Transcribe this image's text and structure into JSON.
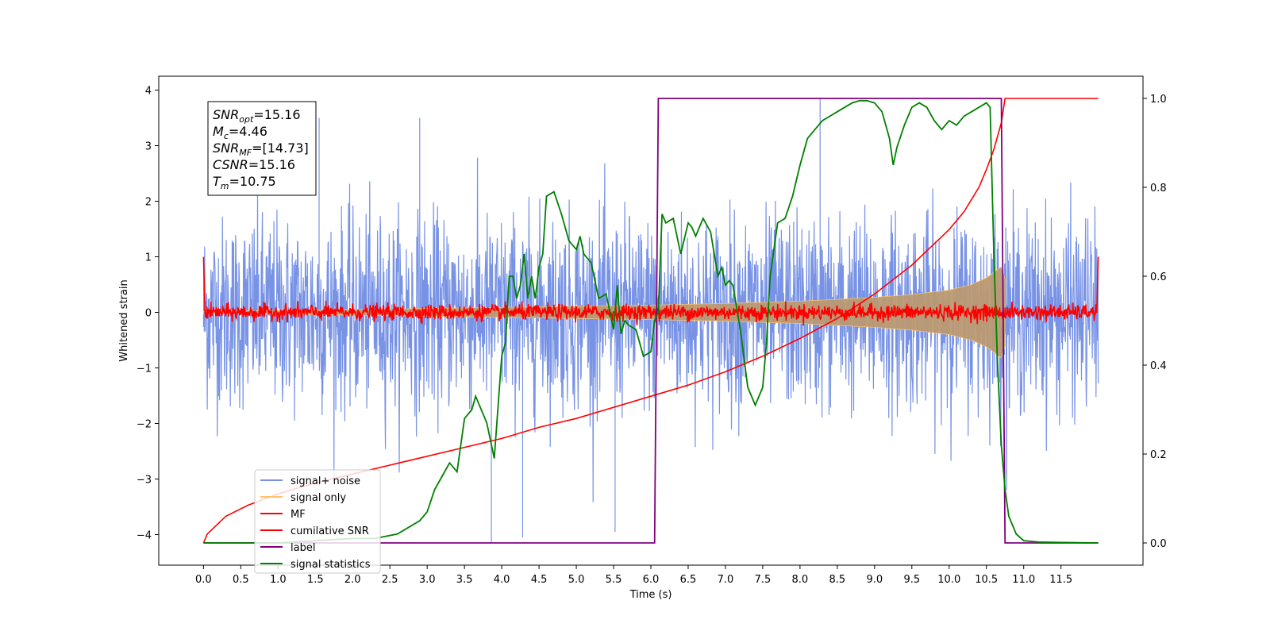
{
  "chart_data": {
    "type": "line",
    "title": "",
    "xlabel": "Time (s)",
    "ylabel": "Whitened strain",
    "xlim": [
      -0.6,
      12.6
    ],
    "ylim": [
      -4.55,
      4.25
    ],
    "y2lim": [
      -0.05,
      1.05
    ],
    "x_ticks": [
      0,
      0.5,
      1,
      1.5,
      2,
      2.5,
      3,
      3.5,
      4,
      4.5,
      5,
      5.5,
      6,
      6.5,
      7,
      7.5,
      8,
      8.5,
      9,
      9.5,
      10,
      10.5,
      11,
      11.5
    ],
    "x_tick_labels": [
      "0.0",
      "0.5",
      "1.0",
      "1.5",
      "2.0",
      "2.5",
      "3.0",
      "3.5",
      "4.0",
      "4.5",
      "5.0",
      "5.5",
      "6.0",
      "6.5",
      "7.0",
      "7.5",
      "8.0",
      "8.5",
      "9.0",
      "9.5",
      "10.0",
      "10.5",
      "11.0",
      "11.5"
    ],
    "y_ticks": [
      -4,
      -3,
      -2,
      -1,
      0,
      1,
      2,
      3,
      4
    ],
    "y_tick_labels": [
      "−4",
      "−3",
      "−2",
      "−1",
      "0",
      "1",
      "2",
      "3",
      "4"
    ],
    "y2_ticks": [
      0,
      0.2,
      0.4,
      0.6,
      0.8,
      1.0
    ],
    "y2_tick_labels": [
      "0.0",
      "0.2",
      "0.4",
      "0.6",
      "0.8",
      "1.0"
    ],
    "grid": false,
    "legend_position": "lower-left",
    "annotation": {
      "lines": [
        {
          "base": "SNR",
          "sub": "opt",
          "value": "=15.16"
        },
        {
          "base": "M",
          "sub": "c",
          "value": "=4.46"
        },
        {
          "base": "SNR",
          "sub": "MF",
          "value": "=[14.73]"
        },
        {
          "base": "CSNR",
          "sub": "",
          "value": "=15.16"
        },
        {
          "base": "T",
          "sub": "m",
          "value": "=10.75"
        }
      ]
    },
    "noise_band": {
      "x_start": 0,
      "x_end": 12,
      "sd": 0.85,
      "peak_max": 3.85,
      "peak_min": -4.15
    },
    "signal_envelope": {
      "x": [
        0,
        1,
        2,
        3,
        4,
        5,
        6,
        7,
        8,
        9,
        9.5,
        10,
        10.3,
        10.5,
        10.6,
        10.7,
        10.75
      ],
      "amp": [
        0.02,
        0.03,
        0.05,
        0.07,
        0.09,
        0.11,
        0.13,
        0.16,
        0.2,
        0.27,
        0.32,
        0.4,
        0.5,
        0.62,
        0.72,
        0.82,
        0.6
      ]
    },
    "series": [
      {
        "name": "signal+ noise",
        "color": "#7893e6",
        "axis": "left"
      },
      {
        "name": "signal only",
        "color": "#fbc36a",
        "axis": "left"
      },
      {
        "name": "MF",
        "color": "#ff0000",
        "axis": "left",
        "amp": 0.07,
        "edge_value": 1.0
      },
      {
        "name": "cumilative SNR",
        "color": "#ff0000",
        "axis": "right",
        "x": [
          0,
          0.05,
          0.3,
          0.6,
          1,
          1.5,
          2,
          2.5,
          3,
          3.5,
          4,
          4.5,
          5,
          5.5,
          6,
          6.5,
          7,
          7.5,
          8,
          8.5,
          9,
          9.5,
          10,
          10.2,
          10.4,
          10.5,
          10.6,
          10.7,
          10.75,
          11,
          11.5,
          12
        ],
        "values": [
          0,
          0.02,
          0.06,
          0.085,
          0.11,
          0.135,
          0.155,
          0.175,
          0.195,
          0.215,
          0.235,
          0.26,
          0.28,
          0.305,
          0.33,
          0.355,
          0.385,
          0.42,
          0.46,
          0.505,
          0.56,
          0.625,
          0.705,
          0.745,
          0.8,
          0.84,
          0.885,
          0.945,
          1.0,
          1.0,
          1.0,
          1.0
        ]
      },
      {
        "name": "label",
        "color": "#800080",
        "axis": "right",
        "x": [
          0,
          6.05,
          6.1,
          10.7,
          10.75,
          12
        ],
        "values": [
          0,
          0,
          1,
          1,
          0,
          0
        ]
      },
      {
        "name": "signal statistics",
        "color": "#008000",
        "axis": "right",
        "x": [
          0,
          0.5,
          1,
          1.5,
          2,
          2.3,
          2.6,
          2.9,
          3.0,
          3.1,
          3.2,
          3.3,
          3.4,
          3.5,
          3.6,
          3.65,
          3.8,
          3.9,
          4.0,
          4.05,
          4.1,
          4.15,
          4.2,
          4.25,
          4.3,
          4.35,
          4.4,
          4.45,
          4.5,
          4.55,
          4.6,
          4.7,
          4.8,
          4.9,
          5.0,
          5.05,
          5.1,
          5.2,
          5.3,
          5.4,
          5.5,
          5.55,
          5.6,
          5.65,
          5.7,
          5.8,
          5.9,
          6.0,
          6.05,
          6.1,
          6.15,
          6.2,
          6.3,
          6.4,
          6.5,
          6.55,
          6.6,
          6.7,
          6.8,
          6.9,
          6.95,
          7.0,
          7.05,
          7.1,
          7.2,
          7.3,
          7.4,
          7.5,
          7.55,
          7.6,
          7.7,
          7.8,
          7.9,
          8.0,
          8.1,
          8.2,
          8.3,
          8.4,
          8.5,
          8.6,
          8.7,
          8.8,
          8.9,
          9.0,
          9.1,
          9.2,
          9.25,
          9.3,
          9.4,
          9.5,
          9.6,
          9.7,
          9.8,
          9.9,
          10.0,
          10.1,
          10.2,
          10.3,
          10.4,
          10.5,
          10.55,
          10.6,
          10.65,
          10.7,
          10.75,
          10.8,
          10.9,
          11.0,
          11.2,
          11.5,
          12
        ],
        "values": [
          0,
          0,
          0,
          0.005,
          0.01,
          0.01,
          0.02,
          0.05,
          0.07,
          0.12,
          0.15,
          0.18,
          0.16,
          0.28,
          0.3,
          0.33,
          0.27,
          0.19,
          0.42,
          0.45,
          0.6,
          0.6,
          0.55,
          0.58,
          0.65,
          0.55,
          0.6,
          0.55,
          0.62,
          0.65,
          0.78,
          0.79,
          0.74,
          0.68,
          0.66,
          0.69,
          0.65,
          0.63,
          0.55,
          0.56,
          0.48,
          0.58,
          0.47,
          0.5,
          0.49,
          0.48,
          0.42,
          0.43,
          0.5,
          0.52,
          0.74,
          0.72,
          0.73,
          0.65,
          0.72,
          0.71,
          0.69,
          0.73,
          0.7,
          0.6,
          0.62,
          0.58,
          0.59,
          0.58,
          0.48,
          0.35,
          0.31,
          0.35,
          0.45,
          0.6,
          0.72,
          0.73,
          0.78,
          0.85,
          0.91,
          0.93,
          0.95,
          0.96,
          0.97,
          0.98,
          0.99,
          0.995,
          0.995,
          0.99,
          0.97,
          0.91,
          0.85,
          0.89,
          0.94,
          0.98,
          0.99,
          0.98,
          0.95,
          0.93,
          0.95,
          0.94,
          0.96,
          0.97,
          0.98,
          0.99,
          0.98,
          0.65,
          0.4,
          0.22,
          0.12,
          0.06,
          0.02,
          0.005,
          0.002,
          0.001,
          0.0
        ]
      }
    ]
  }
}
